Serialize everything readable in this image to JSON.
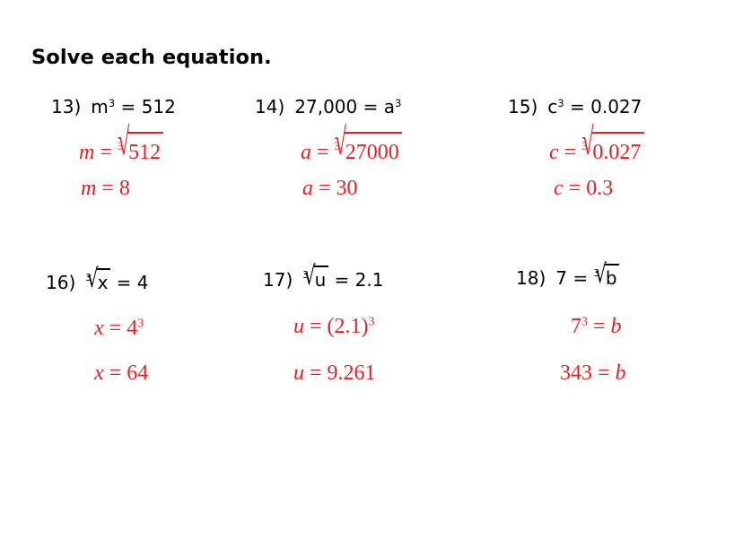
{
  "title": "Solve each equation.",
  "colors": {
    "answer_red": "#e61f23",
    "text_black": "#000000",
    "background": "#ffffff"
  },
  "problems": {
    "p13": {
      "number": "13)",
      "q": [
        {
          "t": "m"
        },
        {
          "sup": "3"
        },
        {
          "t": " = 512"
        }
      ],
      "s1": [
        {
          "t": "m",
          "i": true
        },
        {
          "t": " = "
        },
        {
          "root": {
            "idx": "3",
            "rad": "512"
          }
        }
      ],
      "s2": [
        {
          "t": "m",
          "i": true
        },
        {
          "t": " = 8"
        }
      ]
    },
    "p14": {
      "number": "14)",
      "q": [
        {
          "t": "27,000 = a"
        },
        {
          "sup": "3"
        }
      ],
      "s1": [
        {
          "t": "a",
          "i": true
        },
        {
          "t": " = "
        },
        {
          "root": {
            "idx": "3",
            "rad": "27000"
          }
        }
      ],
      "s2": [
        {
          "t": "a",
          "i": true
        },
        {
          "t": " = 30"
        }
      ]
    },
    "p15": {
      "number": "15)",
      "q": [
        {
          "t": "c"
        },
        {
          "sup": "3"
        },
        {
          "t": " = 0.027"
        }
      ],
      "s1": [
        {
          "t": "c",
          "i": true
        },
        {
          "t": " = "
        },
        {
          "root": {
            "idx": "3",
            "rad": "0.027"
          }
        }
      ],
      "s2": [
        {
          "t": "c",
          "i": true
        },
        {
          "t": " = 0.3"
        }
      ]
    },
    "p16": {
      "number": "16)",
      "q": [
        {
          "root": {
            "idx": "3",
            "rad": "x"
          }
        },
        {
          "t": " = 4"
        }
      ],
      "s1": [
        {
          "t": "x",
          "i": true
        },
        {
          "t": " = 4"
        },
        {
          "sup": "3"
        }
      ],
      "s2": [
        {
          "t": "x",
          "i": true
        },
        {
          "t": " = 64"
        }
      ]
    },
    "p17": {
      "number": "17)",
      "q": [
        {
          "root": {
            "idx": "3",
            "rad": "u"
          }
        },
        {
          "t": " = 2.1"
        }
      ],
      "s1": [
        {
          "t": "u",
          "i": true
        },
        {
          "t": " = (2.1)"
        },
        {
          "sup": "3"
        }
      ],
      "s2": [
        {
          "t": "u",
          "i": true
        },
        {
          "t": " = 9.261"
        }
      ]
    },
    "p18": {
      "number": "18)",
      "q": [
        {
          "t": "7 = "
        },
        {
          "root": {
            "idx": "3",
            "rad": "b"
          }
        }
      ],
      "s1": [
        {
          "t": "7"
        },
        {
          "sup": "3"
        },
        {
          "t": " = "
        },
        {
          "t": "b",
          "i": true
        }
      ],
      "s2": [
        {
          "t": "343 = "
        },
        {
          "t": "b",
          "i": true
        }
      ]
    }
  }
}
